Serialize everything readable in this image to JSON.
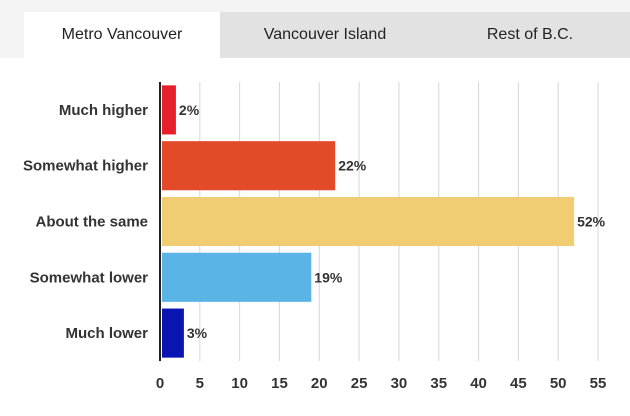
{
  "tabs": [
    {
      "label": "Metro Vancouver",
      "active": true
    },
    {
      "label": "Vancouver Island",
      "active": false
    },
    {
      "label": "Rest of B.C.",
      "active": false
    }
  ],
  "colors": {
    "tab_active_bg": "#ffffff",
    "tab_inactive_bg": "#e2e2e2",
    "grid": "#d7d7d7",
    "axis": "#222222"
  },
  "chart_data": {
    "type": "bar",
    "orientation": "horizontal",
    "categories": [
      "Much higher",
      "Somewhat higher",
      "About the same",
      "Somewhat lower",
      "Much lower"
    ],
    "values": [
      2,
      22,
      52,
      19,
      3
    ],
    "data_labels": [
      "2%",
      "22%",
      "52%",
      "19%",
      "3%"
    ],
    "bar_colors": [
      "#e5202a",
      "#e34a2a",
      "#f0cd72",
      "#5ab4e6",
      "#0a14b0"
    ],
    "xlim": [
      0,
      55
    ],
    "xticks": [
      0,
      5,
      10,
      15,
      20,
      25,
      30,
      35,
      40,
      45,
      50,
      55
    ],
    "grid": true,
    "title": "",
    "xlabel": "",
    "ylabel": ""
  }
}
